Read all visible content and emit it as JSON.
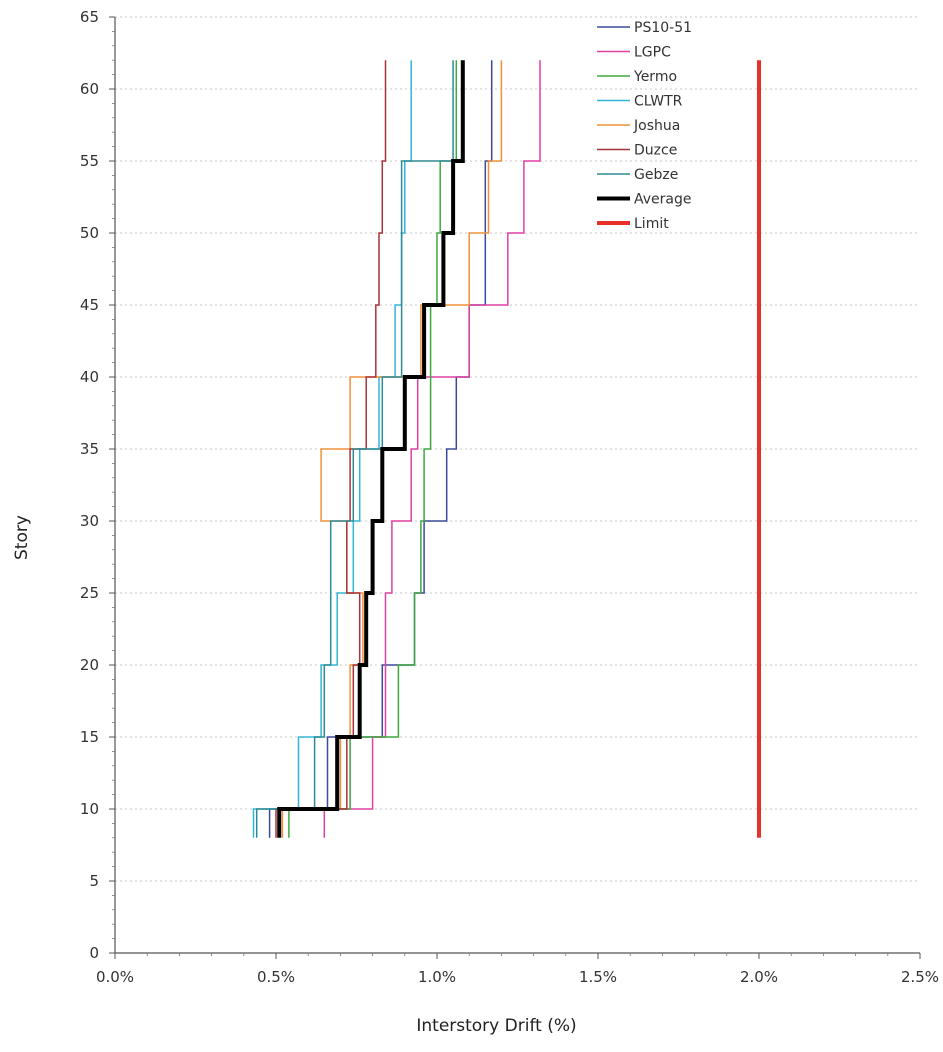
{
  "chart_data": {
    "type": "line",
    "title": "",
    "xlabel": "Interstory Drift (%)",
    "ylabel": "Story",
    "xlim": [
      0,
      2.5
    ],
    "ylim": [
      0,
      65
    ],
    "x_ticks": [
      "0.0%",
      "0.5%",
      "1.0%",
      "1.5%",
      "2.0%",
      "2.5%"
    ],
    "x_tick_values": [
      0,
      0.5,
      1.0,
      1.5,
      2.0,
      2.5
    ],
    "y_ticks": [
      "0",
      "5",
      "10",
      "15",
      "20",
      "25",
      "30",
      "35",
      "40",
      "45",
      "50",
      "55",
      "60",
      "65"
    ],
    "y_tick_values": [
      0,
      5,
      10,
      15,
      20,
      25,
      30,
      35,
      40,
      45,
      50,
      55,
      60,
      65
    ],
    "grid": "horizontal",
    "legend_position": "top-right",
    "series": [
      {
        "name": "PS10-51",
        "color": "#3b4a9b",
        "stroke": 1.5,
        "points": [
          [
            0.48,
            8
          ],
          [
            0.48,
            10
          ],
          [
            0.66,
            10
          ],
          [
            0.66,
            15
          ],
          [
            0.83,
            15
          ],
          [
            0.83,
            20
          ],
          [
            0.93,
            20
          ],
          [
            0.93,
            25
          ],
          [
            0.96,
            25
          ],
          [
            0.96,
            30
          ],
          [
            1.03,
            30
          ],
          [
            1.03,
            35
          ],
          [
            1.06,
            35
          ],
          [
            1.06,
            40
          ],
          [
            1.1,
            40
          ],
          [
            1.1,
            45
          ],
          [
            1.15,
            45
          ],
          [
            1.15,
            50
          ],
          [
            1.15,
            50
          ],
          [
            1.15,
            55
          ],
          [
            1.17,
            55
          ],
          [
            1.17,
            62
          ]
        ]
      },
      {
        "name": "LGPC",
        "color": "#e040a0",
        "stroke": 1.5,
        "points": [
          [
            0.65,
            8
          ],
          [
            0.65,
            10
          ],
          [
            0.8,
            10
          ],
          [
            0.8,
            15
          ],
          [
            0.84,
            15
          ],
          [
            0.84,
            20
          ],
          [
            0.84,
            20
          ],
          [
            0.84,
            25
          ],
          [
            0.86,
            25
          ],
          [
            0.86,
            30
          ],
          [
            0.92,
            30
          ],
          [
            0.92,
            35
          ],
          [
            0.94,
            35
          ],
          [
            0.94,
            40
          ],
          [
            1.1,
            40
          ],
          [
            1.1,
            45
          ],
          [
            1.22,
            45
          ],
          [
            1.22,
            50
          ],
          [
            1.27,
            50
          ],
          [
            1.27,
            55
          ],
          [
            1.32,
            55
          ],
          [
            1.32,
            62
          ]
        ]
      },
      {
        "name": "Yermo",
        "color": "#3fa83f",
        "stroke": 1.5,
        "points": [
          [
            0.54,
            8
          ],
          [
            0.54,
            10
          ],
          [
            0.73,
            10
          ],
          [
            0.73,
            15
          ],
          [
            0.88,
            15
          ],
          [
            0.88,
            20
          ],
          [
            0.93,
            20
          ],
          [
            0.93,
            25
          ],
          [
            0.95,
            25
          ],
          [
            0.95,
            30
          ],
          [
            0.96,
            30
          ],
          [
            0.96,
            35
          ],
          [
            0.98,
            35
          ],
          [
            0.98,
            40
          ],
          [
            0.98,
            40
          ],
          [
            0.98,
            45
          ],
          [
            1.0,
            45
          ],
          [
            1.0,
            50
          ],
          [
            1.01,
            50
          ],
          [
            1.01,
            55
          ],
          [
            1.06,
            55
          ],
          [
            1.06,
            62
          ]
        ]
      },
      {
        "name": "CLWTR",
        "color": "#33b5d8",
        "stroke": 1.5,
        "points": [
          [
            0.43,
            8
          ],
          [
            0.43,
            10
          ],
          [
            0.57,
            10
          ],
          [
            0.57,
            15
          ],
          [
            0.64,
            15
          ],
          [
            0.64,
            20
          ],
          [
            0.69,
            20
          ],
          [
            0.69,
            25
          ],
          [
            0.74,
            25
          ],
          [
            0.74,
            30
          ],
          [
            0.76,
            30
          ],
          [
            0.76,
            35
          ],
          [
            0.82,
            35
          ],
          [
            0.82,
            40
          ],
          [
            0.87,
            40
          ],
          [
            0.87,
            45
          ],
          [
            0.89,
            45
          ],
          [
            0.89,
            50
          ],
          [
            0.9,
            50
          ],
          [
            0.9,
            55
          ],
          [
            0.92,
            55
          ],
          [
            0.92,
            62
          ]
        ]
      },
      {
        "name": "Joshua",
        "color": "#f0913a",
        "stroke": 1.5,
        "points": [
          [
            0.52,
            8
          ],
          [
            0.52,
            10
          ],
          [
            0.7,
            10
          ],
          [
            0.7,
            15
          ],
          [
            0.73,
            15
          ],
          [
            0.73,
            20
          ],
          [
            0.77,
            20
          ],
          [
            0.77,
            25
          ],
          [
            0.72,
            25
          ],
          [
            0.72,
            30
          ],
          [
            0.64,
            30
          ],
          [
            0.64,
            35
          ],
          [
            0.73,
            35
          ],
          [
            0.73,
            40
          ],
          [
            0.95,
            40
          ],
          [
            0.95,
            45
          ],
          [
            1.1,
            45
          ],
          [
            1.1,
            50
          ],
          [
            1.16,
            50
          ],
          [
            1.16,
            55
          ],
          [
            1.2,
            55
          ],
          [
            1.2,
            62
          ]
        ]
      },
      {
        "name": "Duzce",
        "color": "#a8323c",
        "stroke": 1.5,
        "points": [
          [
            0.5,
            8
          ],
          [
            0.5,
            10
          ],
          [
            0.72,
            10
          ],
          [
            0.72,
            15
          ],
          [
            0.74,
            15
          ],
          [
            0.74,
            20
          ],
          [
            0.76,
            20
          ],
          [
            0.76,
            25
          ],
          [
            0.72,
            25
          ],
          [
            0.72,
            30
          ],
          [
            0.73,
            30
          ],
          [
            0.73,
            35
          ],
          [
            0.78,
            35
          ],
          [
            0.78,
            40
          ],
          [
            0.81,
            40
          ],
          [
            0.81,
            45
          ],
          [
            0.82,
            45
          ],
          [
            0.82,
            50
          ],
          [
            0.83,
            50
          ],
          [
            0.83,
            55
          ],
          [
            0.84,
            55
          ],
          [
            0.84,
            62
          ]
        ]
      },
      {
        "name": "Gebze",
        "color": "#2e8a93",
        "stroke": 1.5,
        "points": [
          [
            0.44,
            8
          ],
          [
            0.44,
            10
          ],
          [
            0.62,
            10
          ],
          [
            0.62,
            15
          ],
          [
            0.65,
            15
          ],
          [
            0.65,
            20
          ],
          [
            0.67,
            20
          ],
          [
            0.67,
            25
          ],
          [
            0.67,
            25
          ],
          [
            0.67,
            30
          ],
          [
            0.74,
            30
          ],
          [
            0.74,
            35
          ],
          [
            0.83,
            35
          ],
          [
            0.83,
            40
          ],
          [
            0.89,
            40
          ],
          [
            0.89,
            45
          ],
          [
            0.89,
            50
          ],
          [
            0.89,
            50
          ],
          [
            0.89,
            55
          ],
          [
            1.05,
            55
          ],
          [
            1.05,
            62
          ]
        ]
      },
      {
        "name": "Average",
        "color": "#000000",
        "stroke": 4,
        "points": [
          [
            0.51,
            8
          ],
          [
            0.51,
            10
          ],
          [
            0.69,
            10
          ],
          [
            0.69,
            15
          ],
          [
            0.76,
            15
          ],
          [
            0.76,
            20
          ],
          [
            0.78,
            20
          ],
          [
            0.78,
            25
          ],
          [
            0.8,
            25
          ],
          [
            0.8,
            30
          ],
          [
            0.83,
            30
          ],
          [
            0.83,
            35
          ],
          [
            0.9,
            35
          ],
          [
            0.9,
            40
          ],
          [
            0.96,
            40
          ],
          [
            0.96,
            45
          ],
          [
            1.02,
            45
          ],
          [
            1.02,
            50
          ],
          [
            1.05,
            50
          ],
          [
            1.05,
            55
          ],
          [
            1.08,
            55
          ],
          [
            1.08,
            62
          ]
        ]
      },
      {
        "name": "Limit",
        "color": "#e8302a",
        "stroke": 4,
        "points": [
          [
            2.0,
            8
          ],
          [
            2.0,
            62
          ]
        ]
      }
    ]
  }
}
